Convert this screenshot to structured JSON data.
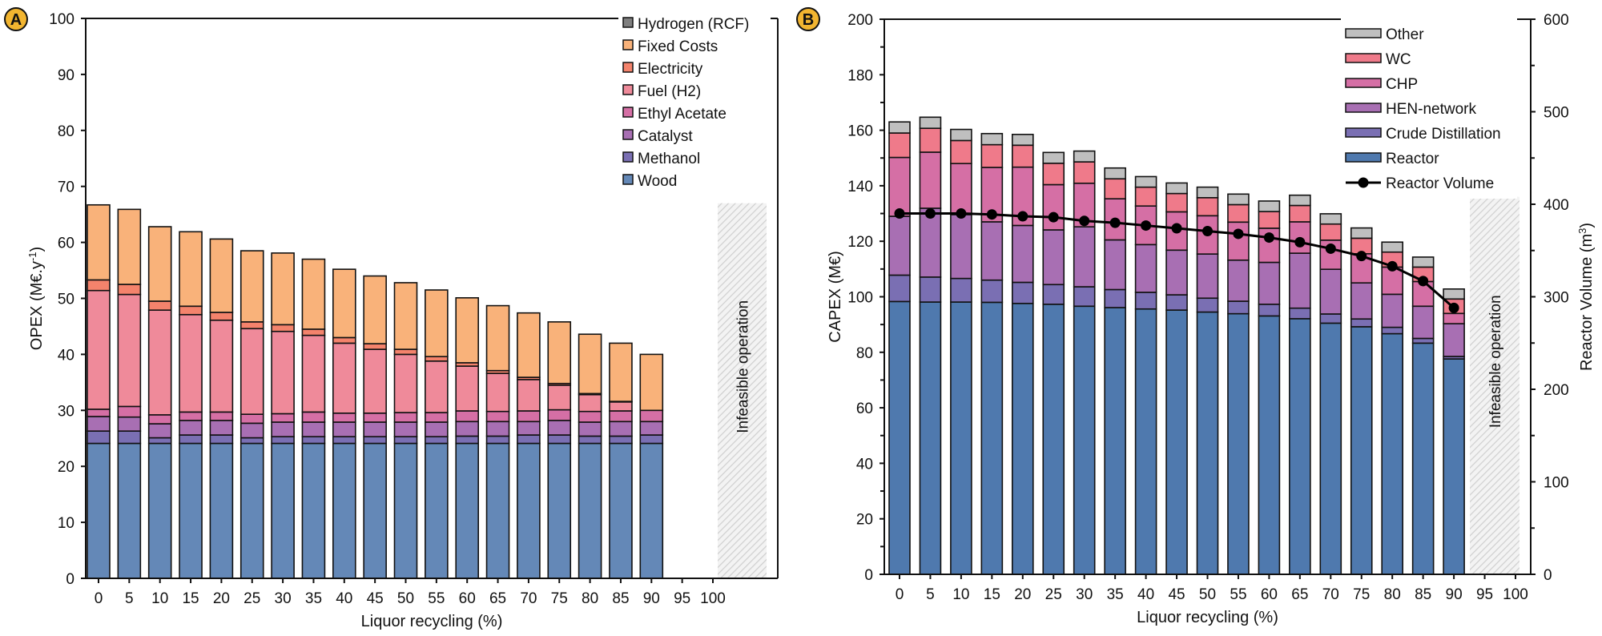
{
  "chart_data": [
    {
      "panel_label": "A",
      "type": "bar",
      "stacked": true,
      "xlabel": "Liquor recycling (%)",
      "ylabel": "OPEX (M€.y",
      "ylabel_sup": "-1",
      "ylabel_end": ")",
      "ylim": [
        0,
        100
      ],
      "yticks": [
        0,
        10,
        20,
        30,
        40,
        50,
        60,
        70,
        80,
        90,
        100
      ],
      "categories": [
        "0",
        "5",
        "10",
        "15",
        "20",
        "25",
        "30",
        "35",
        "40",
        "45",
        "50",
        "55",
        "60",
        "65",
        "70",
        "75",
        "80",
        "85",
        "90",
        "95",
        "100"
      ],
      "infeasible": {
        "label": "Infeasible operation",
        "categories": [
          "95",
          "100"
        ],
        "top": 67
      },
      "legend_position": "top-right",
      "series": [
        {
          "name": "Wood",
          "color": "#6488b7",
          "values": [
            24.1,
            24.1,
            24.1,
            24.1,
            24.1,
            24.1,
            24.1,
            24.1,
            24.1,
            24.1,
            24.1,
            24.1,
            24.1,
            24.1,
            24.1,
            24.1,
            24.1,
            24.1,
            24.1
          ]
        },
        {
          "name": "Methanol",
          "color": "#7a6fb3",
          "values": [
            2.2,
            2.2,
            1.0,
            1.5,
            1.5,
            1.0,
            1.2,
            1.2,
            1.2,
            1.2,
            1.2,
            1.2,
            1.3,
            1.3,
            1.5,
            1.5,
            1.3,
            1.3,
            1.5
          ]
        },
        {
          "name": "Catalyst",
          "color": "#a86fb3",
          "values": [
            2.6,
            2.5,
            2.5,
            2.6,
            2.6,
            2.6,
            2.6,
            2.6,
            2.6,
            2.6,
            2.6,
            2.6,
            2.6,
            2.6,
            2.4,
            2.6,
            2.5,
            2.6,
            2.4
          ]
        },
        {
          "name": "Ethyl Acetate",
          "color": "#d56fa5",
          "values": [
            1.3,
            1.9,
            1.6,
            1.5,
            1.5,
            1.6,
            1.5,
            1.8,
            1.6,
            1.6,
            1.7,
            1.7,
            1.9,
            1.8,
            1.9,
            1.9,
            1.9,
            1.9,
            2.0
          ]
        },
        {
          "name": "Fuel (H2)",
          "color": "#ef8a9a",
          "values": [
            21.2,
            20.0,
            18.7,
            17.4,
            16.4,
            15.3,
            14.7,
            13.7,
            12.5,
            11.4,
            10.4,
            9.2,
            8.0,
            6.8,
            5.6,
            4.4,
            3.0,
            1.6,
            0.0
          ]
        },
        {
          "name": "Electricity",
          "color": "#f4836c",
          "values": [
            1.9,
            1.8,
            1.6,
            1.5,
            1.4,
            1.2,
            1.2,
            1.1,
            1.0,
            1.0,
            0.9,
            0.8,
            0.6,
            0.5,
            0.4,
            0.3,
            0.2,
            0.1,
            0.0
          ]
        },
        {
          "name": "Fixed Costs",
          "color": "#f9b27a",
          "values": [
            13.4,
            13.4,
            13.3,
            13.3,
            13.1,
            12.7,
            12.8,
            12.5,
            12.2,
            12.1,
            11.9,
            11.9,
            11.6,
            11.6,
            11.5,
            11.0,
            10.6,
            10.4,
            10.0
          ]
        },
        {
          "name": "Hydrogen (RCF)",
          "color": "#7f7f7f",
          "values": [
            0,
            0,
            0,
            0,
            0,
            0,
            0,
            0,
            0,
            0,
            0,
            0,
            0,
            0,
            0,
            0,
            0,
            0,
            0
          ]
        }
      ]
    },
    {
      "panel_label": "B",
      "type": "bar",
      "stacked": true,
      "xlabel": "Liquor recycling (%)",
      "ylabel": "CAPEX (M€)",
      "ylim": [
        0,
        200
      ],
      "yticks": [
        0,
        20,
        40,
        60,
        80,
        100,
        120,
        140,
        160,
        180,
        200
      ],
      "y2label": "Reactor Volume (m",
      "y2label_sup": "3",
      "y2label_end": ")",
      "y2lim": [
        0,
        600
      ],
      "y2ticks": [
        0,
        100,
        200,
        300,
        400,
        500,
        600
      ],
      "categories": [
        "0",
        "5",
        "10",
        "15",
        "20",
        "25",
        "30",
        "35",
        "40",
        "45",
        "50",
        "55",
        "60",
        "65",
        "70",
        "75",
        "80",
        "85",
        "90",
        "95",
        "100"
      ],
      "infeasible": {
        "label": "Infeasible operation",
        "categories": [
          "95",
          "100"
        ],
        "top": 136
      },
      "legend_position": "top-right",
      "series": [
        {
          "name": "Reactor",
          "color": "#4f79ae",
          "values": [
            98.3,
            98.1,
            98.1,
            98.0,
            97.6,
            97.3,
            96.6,
            96.1,
            95.6,
            95.2,
            94.5,
            93.9,
            93.1,
            92.1,
            90.5,
            89.2,
            86.7,
            83.3,
            77.6
          ]
        },
        {
          "name": "Crude Distillation",
          "color": "#7a6fb3",
          "values": [
            9.5,
            9.0,
            8.5,
            8.0,
            7.6,
            7.1,
            7.0,
            6.5,
            6.0,
            5.5,
            5.0,
            4.5,
            4.2,
            3.8,
            3.3,
            2.8,
            2.3,
            1.7,
            0.9
          ]
        },
        {
          "name": "HEN-network",
          "color": "#a86fb3",
          "values": [
            21.2,
            24.8,
            23.0,
            21.0,
            20.5,
            19.7,
            21.6,
            17.9,
            17.2,
            16.1,
            15.9,
            14.8,
            15.1,
            19.8,
            16.1,
            13.0,
            11.9,
            11.6,
            11.8
          ]
        },
        {
          "name": "CHP",
          "color": "#d56fa5",
          "values": [
            21.2,
            20.2,
            18.4,
            19.6,
            21.0,
            16.3,
            15.7,
            14.8,
            13.9,
            13.8,
            13.8,
            13.7,
            12.3,
            11.3,
            10.5,
            10.5,
            9.8,
            8.9,
            3.7
          ]
        },
        {
          "name": "WC",
          "color": "#ef7a8a",
          "values": [
            8.8,
            8.6,
            8.3,
            8.2,
            7.9,
            7.7,
            7.7,
            7.2,
            6.8,
            6.6,
            6.5,
            6.3,
            6.0,
            5.9,
            5.8,
            5.6,
            5.4,
            5.2,
            5.2
          ]
        },
        {
          "name": "Other",
          "color": "#bfbfbf",
          "values": [
            4.0,
            4.0,
            4.0,
            4.0,
            3.9,
            3.9,
            3.9,
            3.9,
            3.8,
            3.8,
            3.8,
            3.8,
            3.8,
            3.7,
            3.7,
            3.7,
            3.6,
            3.6,
            3.6
          ]
        }
      ],
      "line_series": {
        "name": "Reactor Volume",
        "color": "#000000",
        "axis": "right",
        "values": [
          390,
          390,
          390,
          389,
          387,
          386,
          382,
          380,
          377,
          374,
          371,
          368,
          364,
          359,
          352,
          344,
          333,
          317,
          288
        ]
      }
    }
  ]
}
